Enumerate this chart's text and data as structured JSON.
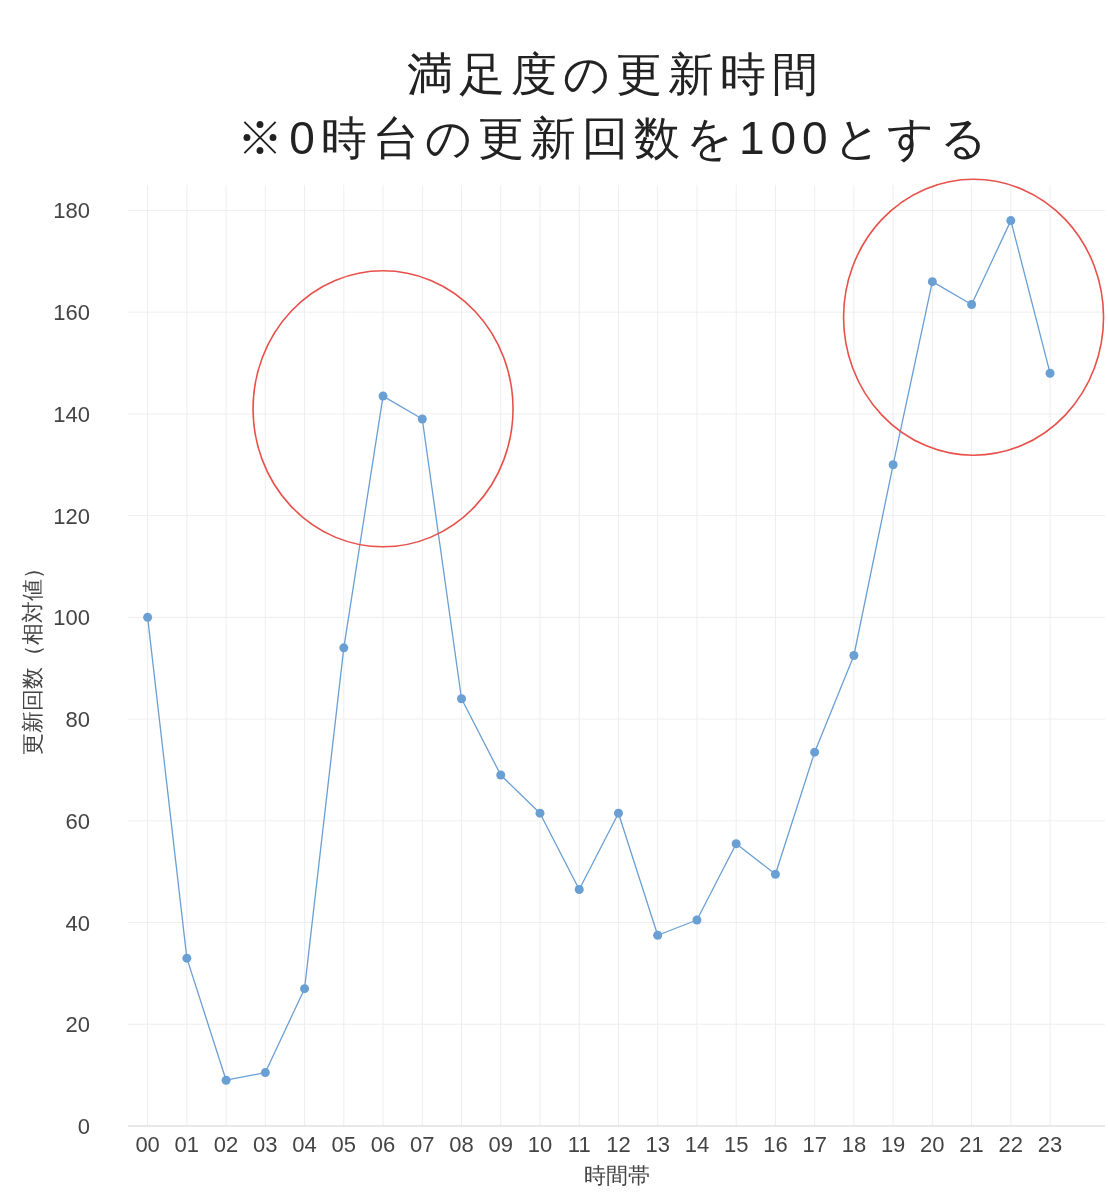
{
  "chart_data": {
    "type": "line",
    "title": "満足度の更新時間",
    "subtitle": "※0時台の更新回数を100とする",
    "xlabel": "時間帯",
    "ylabel": "更新回数（相対値）",
    "categories": [
      "00",
      "01",
      "02",
      "03",
      "04",
      "05",
      "06",
      "07",
      "08",
      "09",
      "10",
      "11",
      "12",
      "13",
      "14",
      "15",
      "16",
      "17",
      "18",
      "19",
      "20",
      "21",
      "22",
      "23"
    ],
    "series": [
      {
        "color": "#6a9fd4",
        "values": [
          100,
          33,
          9,
          10.5,
          27,
          94,
          143.5,
          139,
          84,
          69,
          61.5,
          46.5,
          61.5,
          37.5,
          40.5,
          55.5,
          49.5,
          73.5,
          92.5,
          130,
          166,
          161.5,
          178,
          148
        ]
      }
    ],
    "ylim": [
      0,
      185
    ],
    "yticks": [
      0,
      20,
      40,
      60,
      80,
      100,
      120,
      140,
      160,
      180
    ],
    "grid": true,
    "marker": "circle",
    "line_style": "solid"
  }
}
